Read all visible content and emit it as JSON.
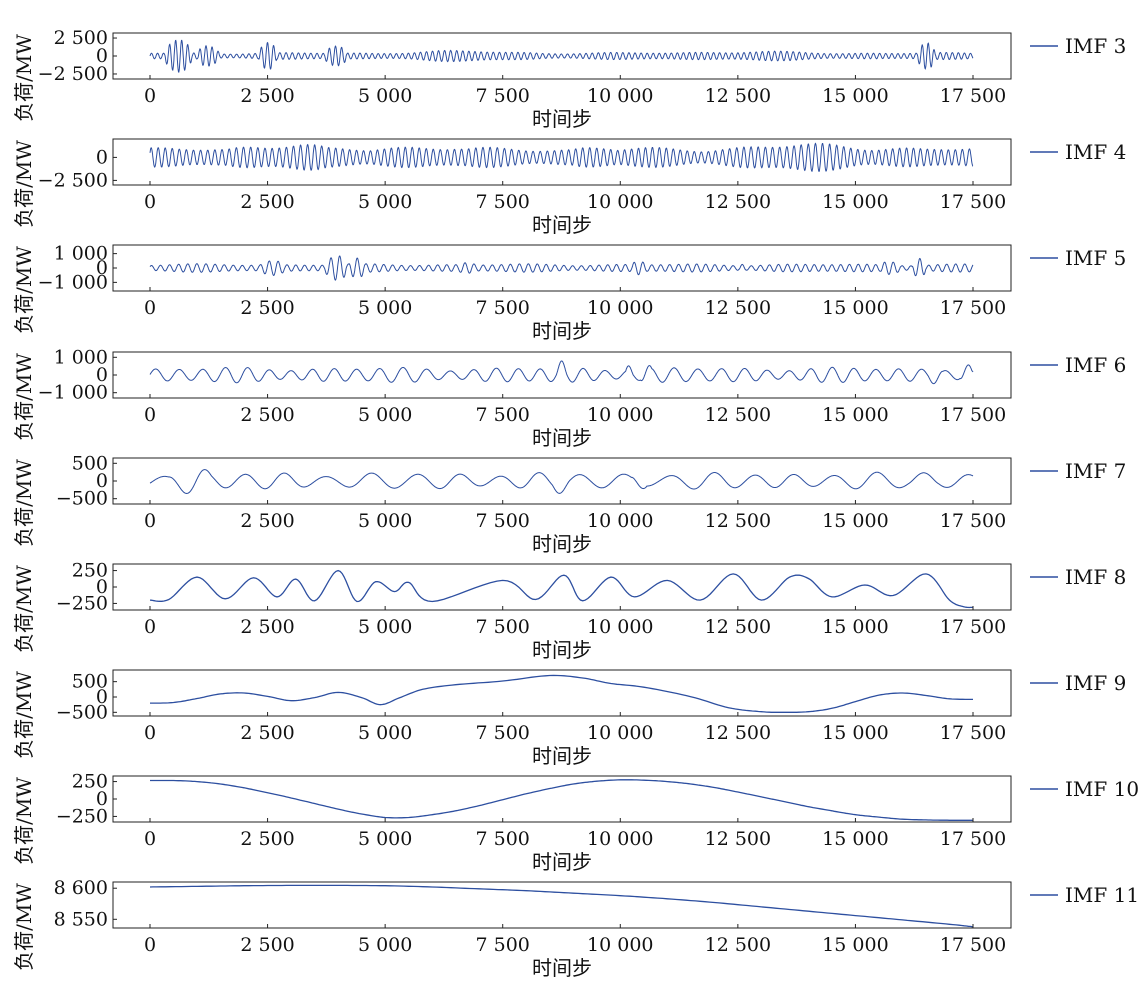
{
  "figure": {
    "xlabel": "时间步",
    "ylabel": "负荷/MW",
    "line_color": "#2d4fa0"
  },
  "chart_data": [
    {
      "type": "line",
      "series": [
        {
          "name": "IMF 3"
        }
      ],
      "xlim": [
        0,
        17500
      ],
      "ylim": [
        -3200,
        3200
      ],
      "x_ticks": [
        0,
        2500,
        5000,
        7500,
        10000,
        12500,
        15000,
        17500
      ],
      "x_tick_labels": [
        "0",
        "2 500",
        "5 000",
        "7 500",
        "10 000",
        "12 500",
        "15 000",
        "17 500"
      ],
      "y_ticks": [
        2500,
        0,
        -2500
      ],
      "y_tick_labels": [
        "2 500",
        "0",
        "−2 500"
      ],
      "xlabel": "时间步",
      "ylabel": "负荷/MW",
      "legend": "right",
      "grid": false,
      "signal": {
        "kind": "oscillation",
        "period": 130,
        "base_amplitude": 500,
        "bursts": [
          [
            300,
            900,
            2600
          ],
          [
            1000,
            1500,
            2000
          ],
          [
            2300,
            2700,
            2200
          ],
          [
            3700,
            4200,
            1800
          ],
          [
            4200,
            9000,
            800
          ],
          [
            9000,
            16000,
            700
          ],
          [
            16300,
            16700,
            2100
          ]
        ]
      }
    },
    {
      "type": "line",
      "series": [
        {
          "name": "IMF 4"
        }
      ],
      "xlim": [
        0,
        17500
      ],
      "ylim": [
        -3000,
        2000
      ],
      "x_ticks": [
        0,
        2500,
        5000,
        7500,
        10000,
        12500,
        15000,
        17500
      ],
      "x_tick_labels": [
        "0",
        "2 500",
        "5 000",
        "7 500",
        "10 000",
        "12 500",
        "15 000",
        "17 500"
      ],
      "y_ticks": [
        0,
        -2500
      ],
      "y_tick_labels": [
        "0",
        "−2 500"
      ],
      "xlabel": "时间步",
      "ylabel": "负荷/MW",
      "legend": "right",
      "grid": false,
      "signal": {
        "kind": "oscillation",
        "period": 150,
        "base_amplitude": 1100,
        "bursts": [
          [
            1300,
            4100,
            1800
          ],
          [
            4100,
            7300,
            1500
          ],
          [
            7300,
            8700,
            700
          ],
          [
            8700,
            10200,
            1500
          ],
          [
            10200,
            10700,
            400
          ],
          [
            10700,
            17500,
            1600
          ]
        ]
      }
    },
    {
      "type": "line",
      "series": [
        {
          "name": "IMF 5"
        }
      ],
      "xlim": [
        0,
        17500
      ],
      "ylim": [
        -1600,
        1600
      ],
      "x_ticks": [
        0,
        2500,
        5000,
        7500,
        10000,
        12500,
        15000,
        17500
      ],
      "x_tick_labels": [
        "0",
        "2 500",
        "5 000",
        "7 500",
        "10 000",
        "12 500",
        "15 000",
        "17 500"
      ],
      "y_ticks": [
        1000,
        0,
        -1000
      ],
      "y_tick_labels": [
        "1 000",
        "0",
        "−1 000"
      ],
      "xlabel": "时间步",
      "ylabel": "负荷/MW",
      "legend": "right",
      "grid": false,
      "signal": {
        "kind": "oscillation",
        "period": 190,
        "base_amplitude": 300,
        "bursts": [
          [
            2300,
            2900,
            700
          ],
          [
            3700,
            4200,
            1100
          ],
          [
            4200,
            4600,
            700
          ],
          [
            6500,
            7000,
            500
          ],
          [
            10200,
            10600,
            600
          ],
          [
            12500,
            12700,
            500
          ],
          [
            15500,
            16000,
            700
          ],
          [
            16200,
            16500,
            1200
          ]
        ]
      }
    },
    {
      "type": "line",
      "series": [
        {
          "name": "IMF 6"
        }
      ],
      "xlim": [
        0,
        17500
      ],
      "ylim": [
        -1300,
        1300
      ],
      "x_ticks": [
        0,
        2500,
        5000,
        7500,
        10000,
        12500,
        15000,
        17500
      ],
      "x_tick_labels": [
        "0",
        "2 500",
        "5 000",
        "7 500",
        "10 000",
        "12 500",
        "15 000",
        "17 500"
      ],
      "y_ticks": [
        1000,
        0,
        -1000
      ],
      "y_tick_labels": [
        "1 000",
        "0",
        "−1 000"
      ],
      "xlabel": "时间步",
      "ylabel": "负荷/MW",
      "legend": "right",
      "grid": false,
      "signal": {
        "kind": "oscillation",
        "period": 480,
        "base_amplitude": 450,
        "bursts": [
          [
            8600,
            8900,
            900
          ],
          [
            10100,
            10300,
            1000
          ],
          [
            10400,
            10700,
            800
          ],
          [
            16500,
            16900,
            800
          ],
          [
            17200,
            17500,
            900
          ]
        ]
      }
    },
    {
      "type": "line",
      "series": [
        {
          "name": "IMF 7"
        }
      ],
      "xlim": [
        0,
        17500
      ],
      "ylim": [
        -650,
        650
      ],
      "x_ticks": [
        0,
        2500,
        5000,
        7500,
        10000,
        12500,
        15000,
        17500
      ],
      "x_tick_labels": [
        "0",
        "2 500",
        "5 000",
        "7 500",
        "10 000",
        "12 500",
        "15 000",
        "17 500"
      ],
      "y_ticks": [
        500,
        0,
        -500
      ],
      "y_tick_labels": [
        "500",
        "0",
        "−500"
      ],
      "xlabel": "时间步",
      "ylabel": "负荷/MW",
      "legend": "right",
      "grid": false,
      "signal": {
        "kind": "oscillation",
        "period": 900,
        "base_amplitude": 250,
        "bursts": [
          [
            300,
            1400,
            500
          ],
          [
            8500,
            9000,
            420
          ],
          [
            10200,
            10600,
            480
          ],
          [
            16000,
            16900,
            380
          ]
        ]
      }
    },
    {
      "type": "line",
      "series": [
        {
          "name": "IMF 8"
        }
      ],
      "xlim": [
        0,
        17500
      ],
      "ylim": [
        -350,
        350
      ],
      "x_ticks": [
        0,
        2500,
        5000,
        7500,
        10000,
        12500,
        15000,
        17500
      ],
      "x_tick_labels": [
        "0",
        "2 500",
        "5 000",
        "7 500",
        "10 000",
        "12 500",
        "15 000",
        "17 500"
      ],
      "y_ticks": [
        250,
        0,
        -250
      ],
      "y_tick_labels": [
        "250",
        "0",
        "−250"
      ],
      "xlabel": "时间步",
      "ylabel": "负荷/MW",
      "legend": "right",
      "grid": false,
      "x": [
        0,
        400,
        1000,
        1600,
        2200,
        2700,
        3100,
        3500,
        4000,
        4400,
        4800,
        5200,
        5500,
        6000,
        7500,
        8200,
        8800,
        9200,
        9800,
        10300,
        11000,
        11700,
        12400,
        13000,
        13600,
        14000,
        14500,
        15200,
        15800,
        16500,
        17000,
        17300,
        17500
      ],
      "y": [
        -200,
        -190,
        150,
        -180,
        140,
        -150,
        120,
        -210,
        250,
        -220,
        80,
        -70,
        70,
        -220,
        100,
        -190,
        180,
        -210,
        150,
        -150,
        100,
        -200,
        200,
        -200,
        150,
        130,
        -150,
        30,
        -130,
        200,
        -200,
        -300,
        -310
      ]
    },
    {
      "type": "line",
      "series": [
        {
          "name": "IMF 9"
        }
      ],
      "xlim": [
        0,
        17500
      ],
      "ylim": [
        -620,
        880
      ],
      "x_ticks": [
        0,
        2500,
        5000,
        7500,
        10000,
        12500,
        15000,
        17500
      ],
      "x_tick_labels": [
        "0",
        "2 500",
        "5 000",
        "7 500",
        "10 000",
        "12 500",
        "15 000",
        "17 500"
      ],
      "y_ticks": [
        500,
        0,
        -500
      ],
      "y_tick_labels": [
        "500",
        "0",
        "−500"
      ],
      "xlabel": "时间步",
      "ylabel": "负荷/MW",
      "legend": "right",
      "grid": false,
      "x": [
        0,
        500,
        1000,
        1500,
        2000,
        2500,
        3000,
        3500,
        4000,
        4500,
        4900,
        5300,
        5800,
        6500,
        7500,
        8500,
        9200,
        9800,
        10500,
        11500,
        12300,
        13000,
        13500,
        14000,
        14500,
        15000,
        15500,
        16000,
        16500,
        17000,
        17500
      ],
      "y": [
        -200,
        -180,
        -50,
        100,
        130,
        20,
        -120,
        -20,
        150,
        -20,
        -250,
        -30,
        250,
        400,
        520,
        700,
        620,
        440,
        320,
        10,
        -350,
        -480,
        -500,
        -480,
        -370,
        -150,
        60,
        130,
        50,
        -60,
        -80
      ]
    },
    {
      "type": "line",
      "series": [
        {
          "name": "IMF 10"
        }
      ],
      "xlim": [
        0,
        17500
      ],
      "ylim": [
        -330,
        330
      ],
      "x_ticks": [
        0,
        2500,
        5000,
        7500,
        10000,
        12500,
        15000,
        17500
      ],
      "x_tick_labels": [
        "0",
        "2 500",
        "5 000",
        "7 500",
        "10 000",
        "12 500",
        "15 000",
        "17 500"
      ],
      "y_ticks": [
        250,
        0,
        -250
      ],
      "y_tick_labels": [
        "250",
        "0",
        "−250"
      ],
      "xlabel": "时间步",
      "ylabel": "负荷/MW",
      "legend": "right",
      "grid": false,
      "x": [
        0,
        500,
        1000,
        1500,
        2000,
        2500,
        3000,
        3500,
        4000,
        4500,
        5000,
        5500,
        6000,
        6500,
        7000,
        7500,
        8000,
        8500,
        9000,
        9500,
        10000,
        10500,
        11000,
        11500,
        12000,
        12500,
        13000,
        13500,
        14000,
        14500,
        15000,
        15500,
        16000,
        16500,
        17000,
        17500
      ],
      "y": [
        265,
        265,
        250,
        215,
        160,
        90,
        15,
        -65,
        -145,
        -215,
        -265,
        -265,
        -225,
        -170,
        -95,
        -10,
        75,
        150,
        215,
        255,
        275,
        270,
        250,
        215,
        165,
        100,
        30,
        -40,
        -110,
        -170,
        -225,
        -260,
        -290,
        -300,
        -305,
        -305
      ]
    },
    {
      "type": "line",
      "series": [
        {
          "name": "IMF 11"
        }
      ],
      "xlim": [
        0,
        17500
      ],
      "ylim": [
        8536,
        8610
      ],
      "x_ticks": [
        0,
        2500,
        5000,
        7500,
        10000,
        12500,
        15000,
        17500
      ],
      "x_tick_labels": [
        "0",
        "2 500",
        "5 000",
        "7 500",
        "10 000",
        "12 500",
        "15 000",
        "17 500"
      ],
      "y_ticks": [
        8600,
        8550
      ],
      "y_tick_labels": [
        "8 600",
        "8 550"
      ],
      "xlabel": "时间步",
      "ylabel": "负荷/MW",
      "legend": "right",
      "grid": false,
      "x": [
        0,
        1000,
        2000,
        3000,
        4000,
        5000,
        6000,
        7000,
        8000,
        9000,
        10000,
        11000,
        12000,
        13000,
        14000,
        15000,
        16000,
        17000,
        17500
      ],
      "y": [
        8602,
        8603,
        8604,
        8604.5,
        8604.5,
        8604,
        8602,
        8599,
        8596,
        8592,
        8588,
        8583,
        8577,
        8570,
        8563,
        8556,
        8549,
        8542,
        8538
      ]
    }
  ]
}
